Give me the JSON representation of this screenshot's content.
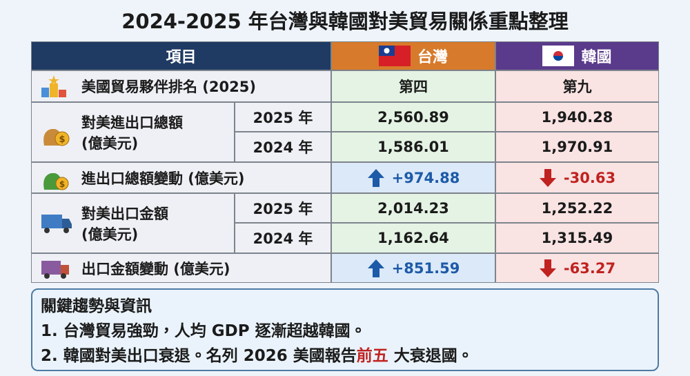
{
  "header": {
    "title": "2024-2025 年台灣與韓國對美貿易關係重點整理"
  },
  "table": {
    "headers": [
      "項目",
      "台灣",
      "韓國"
    ],
    "rank": {
      "label": "美國貿易夥伴排名 (2025)",
      "values": [
        "第四",
        "第九"
      ]
    },
    "total": {
      "label": [
        "對美進出口總額",
        "(億美元)"
      ],
      "years": [
        {
          "year": "2025 年",
          "values": [
            "2,560.89",
            "1,940.28"
          ]
        },
        {
          "year": "2024 年",
          "values": [
            "1,586.01",
            "1,970.91"
          ]
        }
      ]
    },
    "total_change": {
      "label": "進出口總額變動 (億美元)",
      "values": [
        "+974.88",
        "-30.63"
      ]
    },
    "export": {
      "label": [
        "對美出口金額",
        "(億美元)"
      ],
      "years": [
        {
          "year": "2025 年",
          "values": [
            "2,014.23",
            "1,252.22"
          ]
        },
        {
          "year": "2024 年",
          "values": [
            "1,162.64",
            "1,315.49"
          ]
        }
      ]
    },
    "export_change": {
      "label": "出口金額變動 (億美元)",
      "values": [
        "+851.59",
        "-63.27"
      ]
    }
  },
  "notes": {
    "title": "關鍵趨勢與資訊",
    "items": [
      [
        "1. 台灣貿易強勁，人均 GDP 逐漸超越韓國。"
      ],
      [
        "2. 韓國對美出口衰退。名列 2026 美國報告",
        "前五",
        "大衰退國。"
      ]
    ]
  }
}
